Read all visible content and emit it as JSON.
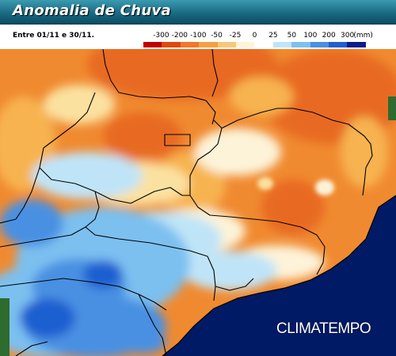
{
  "header": {
    "title": "Anomalia de Chuva"
  },
  "legend": {
    "period": "Entre 01/11 e 30/11.",
    "ticks": [
      "-300",
      "-200",
      "-100",
      "-50",
      "-25",
      "0",
      "25",
      "50",
      "100",
      "200",
      "300"
    ],
    "unit": "(mm)",
    "colors": [
      "#c00000",
      "#e04a0a",
      "#f07828",
      "#f5a040",
      "#f8c878",
      "#fdf3d8",
      "#ffffff",
      "#bfe4f8",
      "#7cc0f0",
      "#4a90e2",
      "#1f5fd0",
      "#0a1c8c"
    ]
  },
  "branding": {
    "logo_text": "CLIMATEMPO"
  },
  "map_colors": {
    "ocean": "#001a66",
    "deep_orange": "#e86a20",
    "orange": "#f08a30",
    "light_orange": "#f7b350",
    "pale": "#fbe1a0",
    "cream": "#fdf3d8",
    "light_blue": "#bfe4f8",
    "blue": "#7cc0f0",
    "mid_blue": "#4a90e2",
    "dark_blue": "#1f5fd0",
    "green_land": "#2e6b2e",
    "border": "#000000"
  }
}
